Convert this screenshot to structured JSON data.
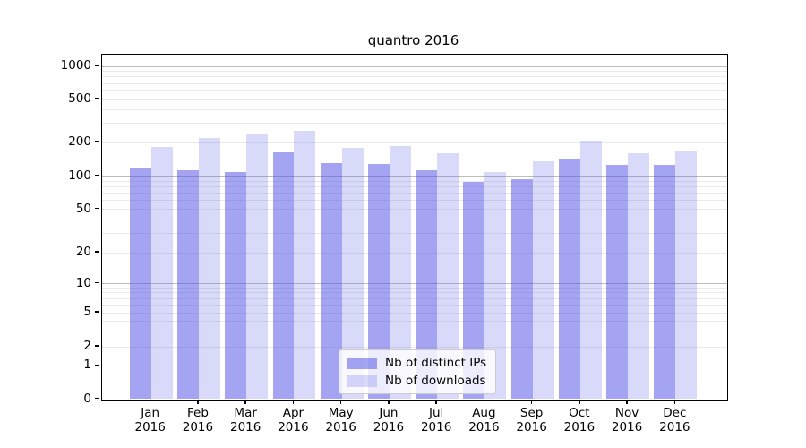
{
  "chart_data": {
    "type": "bar",
    "title": "quantro 2016",
    "categories": [
      "Jan",
      "Feb",
      "Mar",
      "Apr",
      "May",
      "Jun",
      "Jul",
      "Aug",
      "Sep",
      "Oct",
      "Nov",
      "Dec"
    ],
    "category_year_line": "2016",
    "series": [
      {
        "name": "Nb of distinct IPs",
        "color": "rgba(80,80,230,0.52)",
        "values": [
          118,
          113,
          109,
          163,
          131,
          128,
          113,
          88,
          94,
          144,
          125,
          126
        ]
      },
      {
        "name": "Nb of downloads",
        "color": "rgba(80,80,230,0.22)",
        "values": [
          182,
          218,
          244,
          258,
          180,
          187,
          161,
          109,
          136,
          206,
          160,
          167
        ]
      }
    ],
    "y_axis": {
      "scale": "symlog",
      "tick_values": [
        0,
        1,
        2,
        5,
        10,
        20,
        50,
        100,
        200,
        500,
        1000
      ],
      "tick_labels": [
        "0",
        "1",
        "2",
        "5",
        "10",
        "20",
        "50",
        "100",
        "200",
        "500",
        "1000"
      ],
      "major_gridlines": [
        1,
        10,
        100,
        1000
      ],
      "minor_gridlines": [
        2,
        3,
        4,
        5,
        6,
        7,
        8,
        9,
        20,
        30,
        40,
        50,
        60,
        70,
        80,
        90,
        200,
        300,
        400,
        500,
        600,
        700,
        800,
        900
      ],
      "range": [
        0,
        1288
      ]
    },
    "x_axis": {
      "second_line": "2016"
    },
    "legend": {
      "position": "bottom-center",
      "entries": [
        "Nb of distinct IPs",
        "Nb of downloads"
      ]
    },
    "grid": true
  },
  "colors": {
    "background": "#ffffff",
    "bar_dark": "rgba(80,80,230,0.52)",
    "bar_light": "rgba(80,80,230,0.22)",
    "major_grid": "#bdbdbd",
    "minor_grid": "#eaeaea",
    "axis": "#000000",
    "legend_border": "#cccccc"
  }
}
